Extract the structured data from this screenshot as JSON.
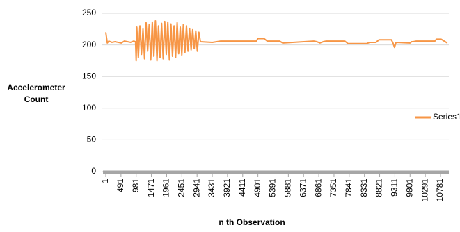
{
  "chart_data": {
    "type": "line",
    "y_label": "Accelerometer Count",
    "x_label": "n th Observation",
    "x": [
      1,
      50,
      100,
      200,
      300,
      400,
      500,
      600,
      700,
      800,
      900,
      960,
      980,
      1000,
      1050,
      1100,
      1150,
      1200,
      1250,
      1300,
      1350,
      1400,
      1450,
      1500,
      1550,
      1600,
      1650,
      1700,
      1750,
      1800,
      1850,
      1900,
      1950,
      2000,
      2050,
      2100,
      2150,
      2200,
      2250,
      2300,
      2350,
      2400,
      2450,
      2500,
      2550,
      2600,
      2650,
      2700,
      2750,
      2800,
      2850,
      2900,
      2950,
      3000,
      3050,
      3431,
      3700,
      4200,
      4850,
      4900,
      5100,
      5200,
      5600,
      5700,
      6700,
      6800,
      6900,
      7000,
      7100,
      7200,
      7700,
      7800,
      8400,
      8500,
      8700,
      8800,
      9200,
      9250,
      9300,
      9350,
      9800,
      9850,
      9900,
      10000,
      10600,
      10650,
      10800,
      11000
    ],
    "series": [
      {
        "name": "Series1",
        "color": "#f79646",
        "values": [
          220,
          203,
          206,
          204,
          205,
          204,
          203,
          206,
          205,
          204,
          206,
          205,
          175,
          228,
          180,
          230,
          185,
          225,
          178,
          235,
          190,
          232,
          176,
          236,
          182,
          238,
          175,
          230,
          180,
          234,
          178,
          237,
          185,
          236,
          176,
          233,
          182,
          230,
          180,
          235,
          186,
          228,
          184,
          232,
          188,
          230,
          190,
          226,
          192,
          224,
          194,
          222,
          190,
          220,
          205,
          204,
          206,
          206,
          206,
          210,
          210,
          206,
          206,
          203,
          206,
          205,
          203,
          205,
          206,
          206,
          206,
          202,
          202,
          204,
          204,
          208,
          208,
          203,
          196,
          204,
          203,
          205,
          205,
          206,
          206,
          209,
          209,
          203
        ]
      }
    ],
    "xlim": [
      1,
      11050
    ],
    "xticks": [
      1,
      491,
      981,
      1471,
      1961,
      2451,
      2941,
      3431,
      3921,
      4411,
      4901,
      5391,
      5881,
      6371,
      6861,
      7351,
      7841,
      8331,
      8821,
      9311,
      9801,
      10291,
      10781
    ],
    "ylim": [
      0,
      250
    ],
    "yticks": [
      0,
      50,
      100,
      150,
      200,
      250
    ],
    "grid": true,
    "legend": "right"
  }
}
